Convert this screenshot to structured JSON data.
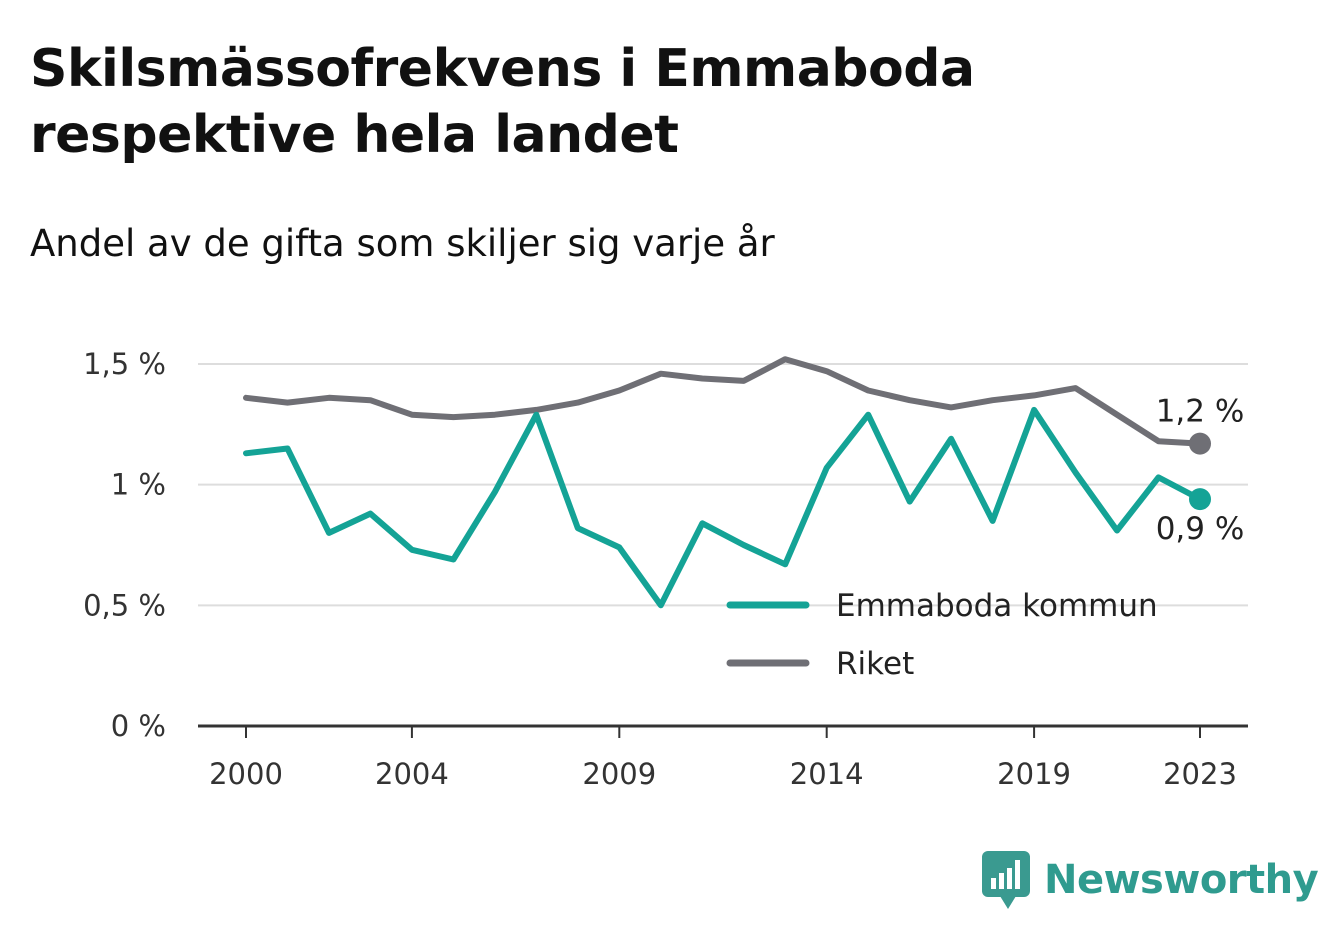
{
  "title": "Skilsmässofrekvens i Emmaboda respektive hela landet",
  "subtitle": "Andel av de gifta som skiljer sig varje år",
  "brand": {
    "name": "Newsworthy",
    "icon": "bar-chart-speech-bubble-icon",
    "color": "#3a9a90"
  },
  "chart_data": {
    "type": "line",
    "x": [
      2000,
      2001,
      2002,
      2003,
      2004,
      2005,
      2006,
      2007,
      2008,
      2009,
      2010,
      2011,
      2012,
      2013,
      2014,
      2015,
      2016,
      2017,
      2018,
      2019,
      2020,
      2021,
      2022,
      2023
    ],
    "x_ticks": [
      2000,
      2004,
      2009,
      2014,
      2019,
      2023
    ],
    "x_tick_labels": [
      "2000",
      "2004",
      "2009",
      "2014",
      "2019",
      "2023"
    ],
    "y_ticks": [
      0,
      0.5,
      1,
      1.5
    ],
    "y_tick_labels": [
      "0 %",
      "0,5 %",
      "1 %",
      "1,5 %"
    ],
    "ylim": [
      0,
      1.5
    ],
    "grid": true,
    "legend_position": "bottom-right",
    "series": [
      {
        "name": "Emmaboda kommun",
        "color": "#14a396",
        "end_label": "0,9 %",
        "values": [
          1.13,
          1.15,
          0.8,
          0.88,
          0.73,
          0.69,
          0.97,
          1.29,
          0.82,
          0.74,
          0.5,
          0.84,
          0.75,
          0.67,
          1.07,
          1.29,
          0.93,
          1.19,
          0.85,
          1.31,
          1.05,
          0.81,
          1.03,
          0.94
        ]
      },
      {
        "name": "Riket",
        "color": "#6f6f75",
        "end_label": "1,2 %",
        "values": [
          1.36,
          1.34,
          1.36,
          1.35,
          1.29,
          1.28,
          1.29,
          1.31,
          1.34,
          1.39,
          1.46,
          1.44,
          1.43,
          1.52,
          1.47,
          1.39,
          1.35,
          1.32,
          1.35,
          1.37,
          1.4,
          1.29,
          1.18,
          1.17
        ]
      }
    ]
  }
}
